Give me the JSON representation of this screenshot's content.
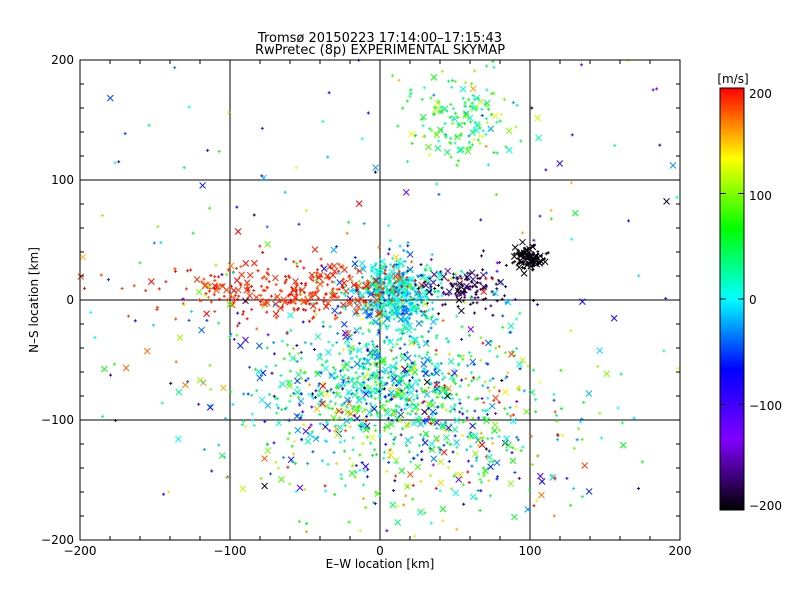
{
  "chart_data": {
    "type": "scatter",
    "title": "Tromsø 20150223 17:14:00–17:15:43",
    "subtitle": "RwPretec (8p) EXPERIMENTAL SKYMAP",
    "xlabel": "E–W location [km]",
    "ylabel": "N–S location [km]",
    "xlim": [
      -200,
      200
    ],
    "ylim": [
      -200,
      200
    ],
    "xticks": [
      "−200",
      "−100",
      "0",
      "100",
      "200"
    ],
    "yticks": [
      "−200",
      "−100",
      "0",
      "100",
      "200"
    ],
    "grid": true,
    "colorbar": {
      "label": "[m/s]",
      "range": [
        -200,
        200
      ],
      "ticks": [
        "200",
        "100",
        "0",
        "−100",
        "−200"
      ],
      "colors": [
        "#000000",
        "#8000ff",
        "#0000ff",
        "#00ffff",
        "#00ff00",
        "#ffff00",
        "#ff0000"
      ]
    },
    "markers": [
      "plus",
      "cross"
    ],
    "clusters": [
      {
        "center": [
          10,
          5
        ],
        "spread": [
          25,
          25
        ],
        "count": 520,
        "velocity_mean": 0,
        "velocity_spread": 60
      },
      {
        "center": [
          0,
          -70
        ],
        "spread": [
          55,
          40
        ],
        "count": 520,
        "velocity_mean": 20,
        "velocity_spread": 90
      },
      {
        "center": [
          -60,
          8
        ],
        "spread": [
          75,
          20
        ],
        "count": 340,
        "velocity_mean": 190,
        "velocity_spread": 20
      },
      {
        "center": [
          100,
          35
        ],
        "spread": [
          10,
          8
        ],
        "count": 120,
        "velocity_mean": -200,
        "velocity_spread": 10
      },
      {
        "center": [
          55,
          10
        ],
        "spread": [
          25,
          15
        ],
        "count": 120,
        "velocity_mean": -180,
        "velocity_spread": 30
      },
      {
        "center": [
          55,
          150
        ],
        "spread": [
          30,
          30
        ],
        "count": 160,
        "velocity_mean": 60,
        "velocity_spread": 90
      },
      {
        "center": [
          0,
          -90
        ],
        "spread": [
          110,
          70
        ],
        "count": 360,
        "velocity_mean": 0,
        "velocity_spread": 200
      },
      {
        "center": [
          40,
          -110
        ],
        "spread": [
          80,
          50
        ],
        "count": 260,
        "velocity_mean": 80,
        "velocity_spread": 150
      },
      {
        "center": [
          0,
          0
        ],
        "spread": [
          200,
          200
        ],
        "count": 280,
        "velocity_mean": 0,
        "velocity_spread": 200
      }
    ]
  }
}
